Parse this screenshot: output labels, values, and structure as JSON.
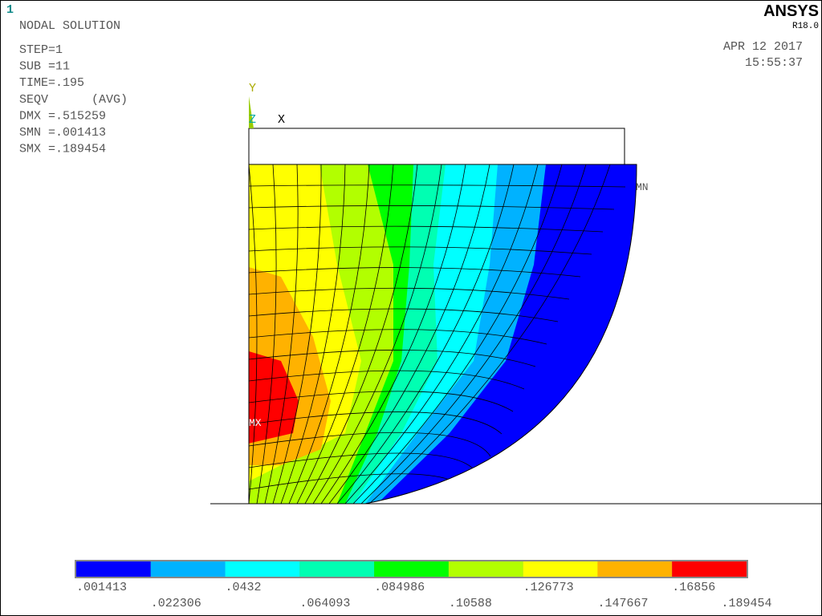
{
  "window_number": "1",
  "header": {
    "title": "NODAL SOLUTION",
    "lines": [
      "STEP=1",
      "SUB =11",
      "TIME=.195",
      "SEQV      (AVG)",
      "DMX =.515259",
      "SMN =.001413",
      "SMX =.189454"
    ]
  },
  "brand": {
    "name": "ANSYS",
    "version": "R18.0",
    "date": "APR 12 2017",
    "time": "15:55:37"
  },
  "axes": {
    "y": "Y",
    "z": "Z",
    "x": "X"
  },
  "markers": {
    "min": "MN",
    "max": "MX"
  },
  "legend": {
    "labels": [
      ".001413",
      ".022306",
      ".0432",
      ".064093",
      ".084986",
      ".10588",
      ".126773",
      ".147667",
      ".16856",
      ".189454"
    ],
    "colors": [
      "#0000ff",
      "#00b2ff",
      "#00ffff",
      "#00ffb2",
      "#00ff00",
      "#b2ff00",
      "#ffff00",
      "#ffb200",
      "#ff0000"
    ]
  }
}
